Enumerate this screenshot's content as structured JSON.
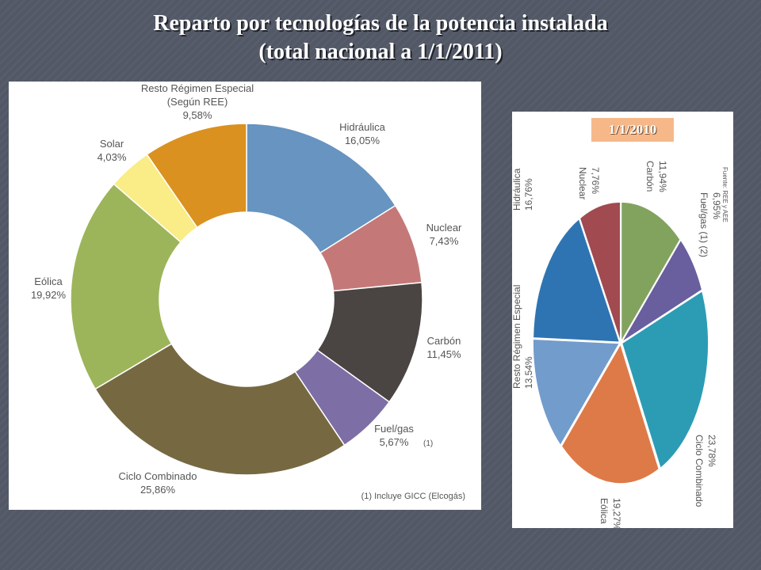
{
  "slide": {
    "title_line1": "Reparto por tecnologías de la potencia instalada",
    "title_line2": "(total nacional a 1/1/2011)"
  },
  "chart_data": [
    {
      "type": "pie",
      "variant": "donut",
      "categories": [
        "Hidráulica",
        "Nuclear",
        "Carbón",
        "Fuel/gas",
        "Ciclo Combinado",
        "Eólica",
        "Solar",
        "Resto Régimen Especial (Según REE)"
      ],
      "values": [
        16.05,
        7.43,
        11.45,
        5.67,
        25.86,
        19.92,
        4.03,
        9.58
      ],
      "value_labels": [
        "16,05%",
        "7,43%",
        "11,45%",
        "5,67%",
        "25,86%",
        "19,92%",
        "4,03%",
        "9,58%"
      ],
      "label_lines": [
        [
          "Hidráulica"
        ],
        [
          "Nuclear"
        ],
        [
          "Carbón"
        ],
        [
          "Fuel/gas"
        ],
        [
          "Ciclo Combinado"
        ],
        [
          "Eólica"
        ],
        [
          "Solar"
        ],
        [
          "Resto Régimen Especial",
          "(Según REE)"
        ]
      ],
      "colors": [
        "#6794c0",
        "#c47978",
        "#4a4542",
        "#7d6fa5",
        "#766942",
        "#9db55a",
        "#faec86",
        "#da911f"
      ],
      "fuelgas_marker": "(1)",
      "footnote": "(1) Incluye GICC (Elcogás)"
    },
    {
      "type": "pie",
      "date_badge": "1/1/2010",
      "categories": [
        "Carbón",
        "Fuel/gas (1) (2)",
        "Ciclo Combinado",
        "Eólica",
        "Resto Régimen Especial",
        "Hidráulica",
        "Nuclear"
      ],
      "values": [
        11.94,
        6.95,
        23.78,
        19.27,
        13.54,
        16.76,
        7.76
      ],
      "value_labels": [
        "11,94%",
        "6,95%",
        "23,78%",
        "19,27%",
        "13,54%",
        "16,76%",
        "7,76%"
      ],
      "colors": [
        "#82a35e",
        "#695e9e",
        "#2c9cb4",
        "#de7a48",
        "#729ccc",
        "#2f74b2",
        "#a14a50"
      ],
      "source": "Fuente: REE y AEE"
    }
  ]
}
